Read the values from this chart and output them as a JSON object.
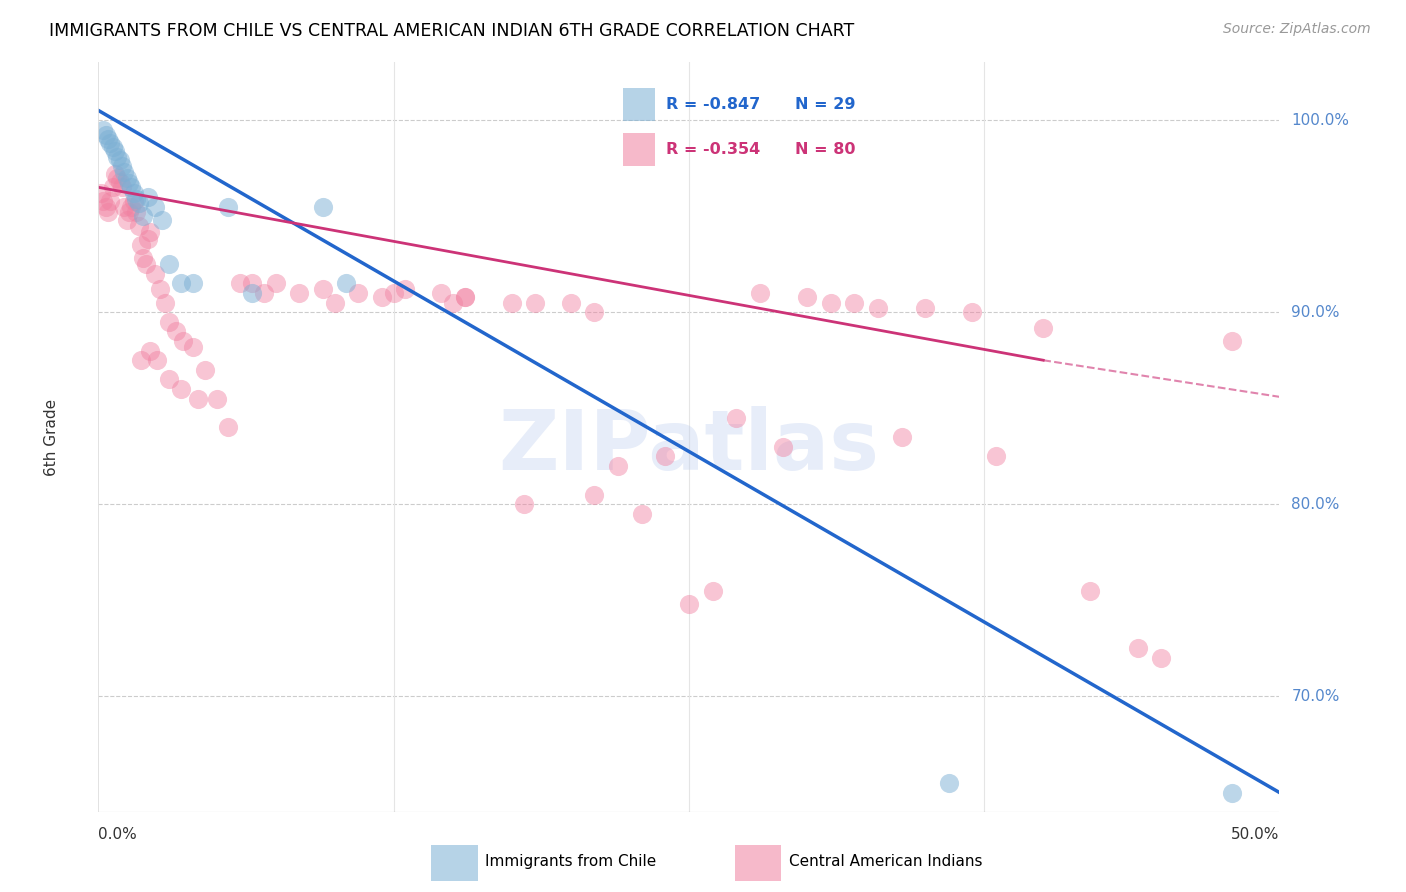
{
  "title": "IMMIGRANTS FROM CHILE VS CENTRAL AMERICAN INDIAN 6TH GRADE CORRELATION CHART",
  "source": "Source: ZipAtlas.com",
  "ylabel": "6th Grade",
  "xlim": [
    0.0,
    50.0
  ],
  "ylim": [
    64.0,
    103.0
  ],
  "ytick_vals": [
    70.0,
    80.0,
    90.0,
    100.0
  ],
  "ytick_labels": [
    "70.0%",
    "80.0%",
    "90.0%",
    "100.0%"
  ],
  "legend_blue_r": "R = -0.847",
  "legend_blue_n": "N = 29",
  "legend_pink_r": "R = -0.354",
  "legend_pink_n": "N = 80",
  "blue_color": "#7BAFD4",
  "pink_color": "#F080A0",
  "blue_line_color": "#2266CC",
  "pink_line_color": "#CC3377",
  "watermark": "ZIPatlas",
  "watermark_color": "#BBCCEE",
  "blue_line": [
    [
      0.0,
      100.5
    ],
    [
      50.0,
      65.0
    ]
  ],
  "pink_line_solid": [
    [
      0.0,
      96.5
    ],
    [
      40.0,
      87.5
    ]
  ],
  "pink_line_dash": [
    [
      40.0,
      87.5
    ],
    [
      50.5,
      85.5
    ]
  ],
  "blue_x": [
    0.2,
    0.3,
    0.4,
    0.5,
    0.6,
    0.7,
    0.8,
    0.9,
    1.0,
    1.1,
    1.2,
    1.3,
    1.4,
    1.5,
    1.6,
    1.7,
    1.9,
    2.1,
    2.4,
    2.7,
    3.0,
    3.5,
    4.0,
    5.5,
    6.5,
    9.5,
    10.5,
    36.0,
    48.0
  ],
  "blue_y": [
    99.5,
    99.2,
    99.0,
    98.8,
    98.6,
    98.4,
    98.1,
    97.9,
    97.6,
    97.3,
    97.0,
    96.7,
    96.5,
    96.2,
    95.9,
    95.7,
    95.0,
    96.0,
    95.5,
    94.8,
    92.5,
    91.5,
    91.5,
    95.5,
    91.0,
    95.5,
    91.5,
    65.5,
    65.0
  ],
  "pink_x": [
    0.1,
    0.2,
    0.3,
    0.4,
    0.5,
    0.6,
    0.7,
    0.8,
    0.9,
    1.0,
    1.1,
    1.2,
    1.3,
    1.4,
    1.5,
    1.6,
    1.7,
    1.8,
    1.9,
    2.0,
    2.1,
    2.2,
    2.4,
    2.6,
    2.8,
    3.0,
    3.3,
    3.6,
    4.0,
    4.5,
    5.0,
    6.0,
    6.5,
    7.5,
    8.5,
    9.5,
    11.0,
    13.0,
    14.5,
    15.5,
    17.5,
    20.0,
    22.0,
    25.0,
    27.0,
    30.0,
    32.0,
    35.0,
    40.0,
    48.0,
    1.8,
    2.2,
    2.5,
    3.0,
    3.5,
    4.2,
    5.5,
    7.0,
    10.0,
    12.0,
    15.0,
    18.0,
    21.0,
    23.0,
    26.0,
    28.0,
    31.0,
    33.0,
    37.0,
    42.0,
    45.0,
    12.5,
    15.5,
    18.5,
    21.0,
    24.0,
    29.0,
    34.0,
    38.0,
    44.0
  ],
  "pink_y": [
    96.2,
    95.8,
    95.5,
    95.2,
    95.8,
    96.5,
    97.2,
    97.0,
    96.8,
    96.5,
    95.5,
    94.8,
    95.2,
    95.5,
    95.8,
    95.2,
    94.5,
    93.5,
    92.8,
    92.5,
    93.8,
    94.2,
    92.0,
    91.2,
    90.5,
    89.5,
    89.0,
    88.5,
    88.2,
    87.0,
    85.5,
    91.5,
    91.5,
    91.5,
    91.0,
    91.2,
    91.0,
    91.2,
    91.0,
    90.8,
    90.5,
    90.5,
    82.0,
    74.8,
    84.5,
    90.8,
    90.5,
    90.2,
    89.2,
    88.5,
    87.5,
    88.0,
    87.5,
    86.5,
    86.0,
    85.5,
    84.0,
    91.0,
    90.5,
    90.8,
    90.5,
    80.0,
    80.5,
    79.5,
    75.5,
    91.0,
    90.5,
    90.2,
    90.0,
    75.5,
    72.0,
    91.0,
    90.8,
    90.5,
    90.0,
    82.5,
    83.0,
    83.5,
    82.5,
    72.5
  ]
}
